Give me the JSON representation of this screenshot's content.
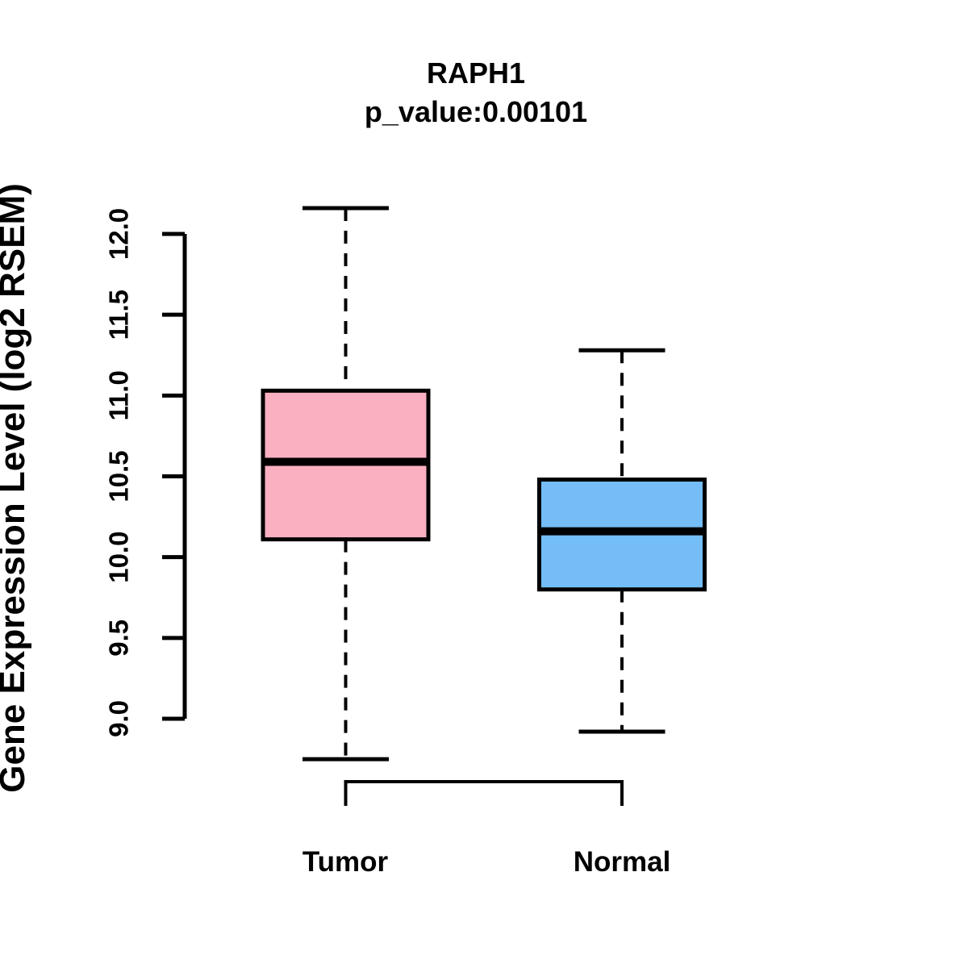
{
  "chart_data": {
    "type": "boxplot",
    "title": "RAPH1",
    "subtitle": "p_value:0.00101",
    "ylabel": "Gene Expression Level (log2 RSEM)",
    "ylim": [
      9.0,
      12.0
    ],
    "y_tick_values": [
      9.0,
      9.5,
      10.0,
      10.5,
      11.0,
      11.5,
      12.0
    ],
    "y_tick_labels": [
      "9.0",
      "9.5",
      "10.0",
      "10.5",
      "11.0",
      "11.5",
      "12.0"
    ],
    "grid": "off",
    "legend": "none",
    "axis_color": "#000000",
    "median_color": "#000000",
    "groups": [
      {
        "label": "Tumor",
        "fill": "#FBB0C2",
        "whisker_low": 8.75,
        "q1": 10.11,
        "median": 10.59,
        "q3": 11.03,
        "whisker_high": 12.16
      },
      {
        "label": "Normal",
        "fill": "#74BDF7",
        "whisker_low": 8.92,
        "q1": 9.8,
        "median": 10.16,
        "q3": 10.48,
        "whisker_high": 11.28
      }
    ]
  }
}
